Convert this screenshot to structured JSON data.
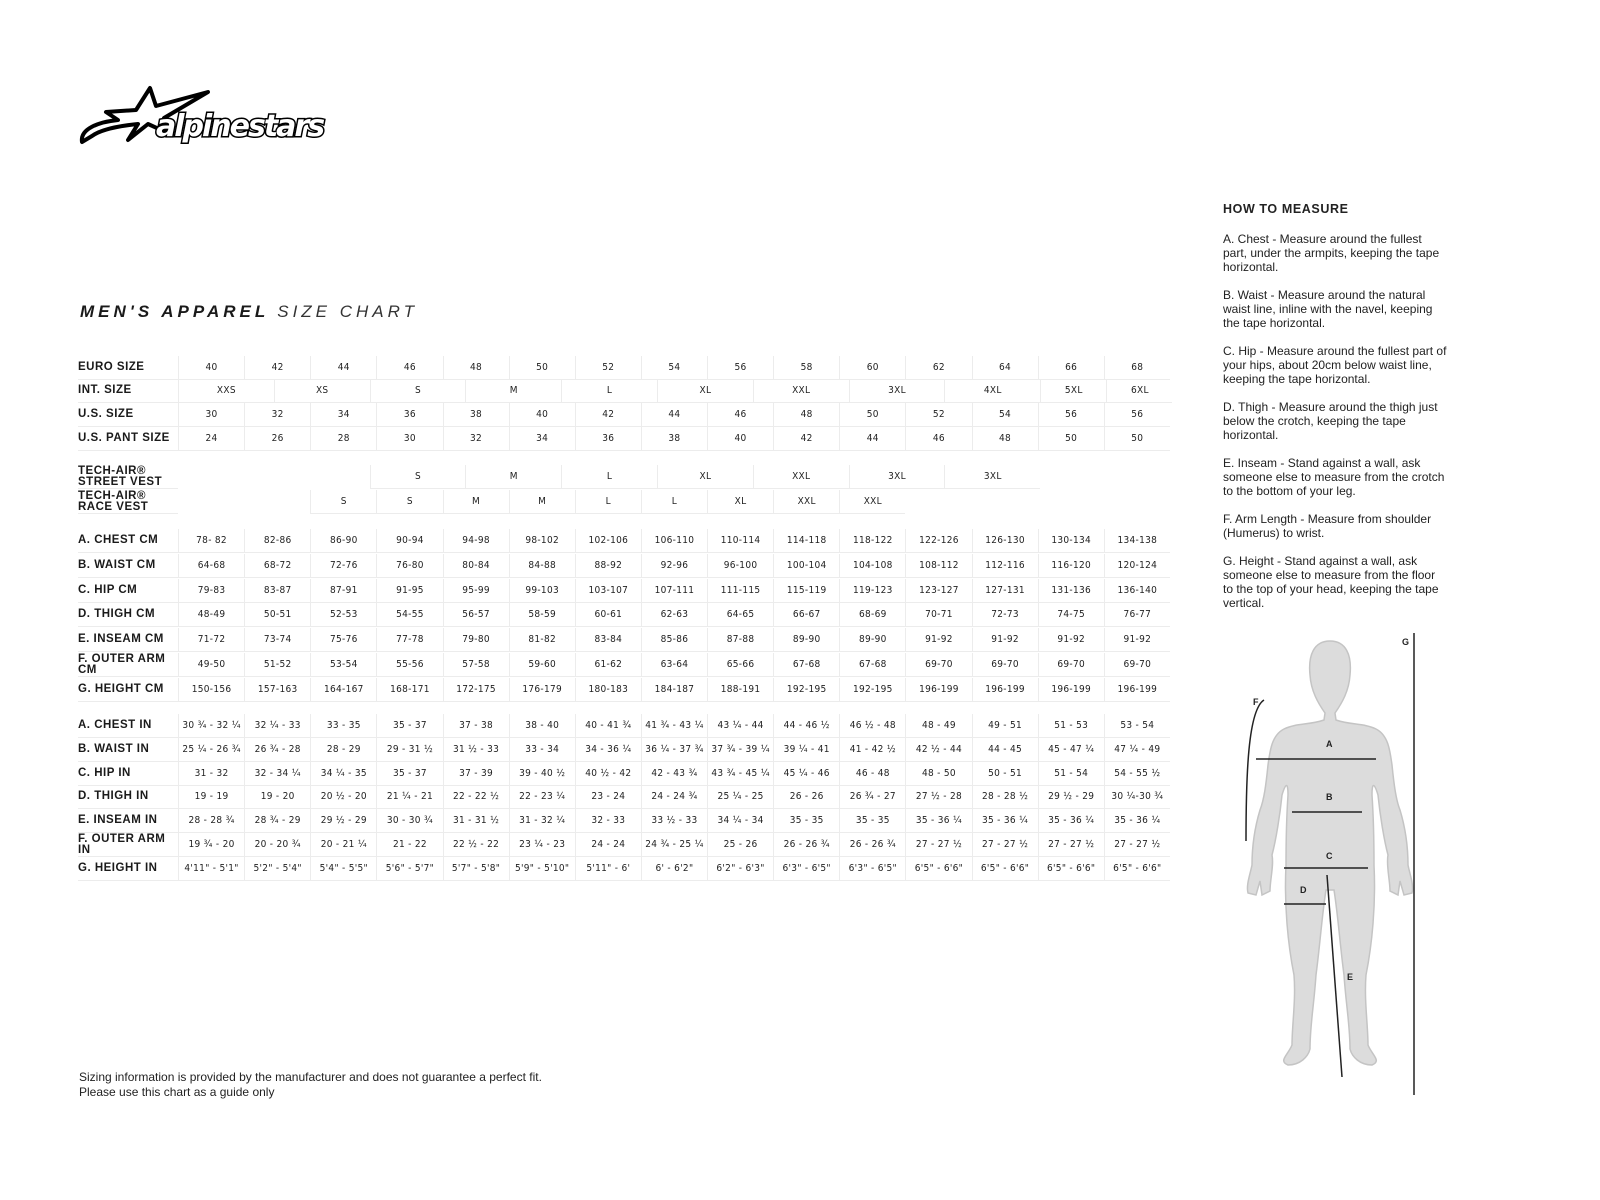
{
  "brand": {
    "logo_text": "alpinestars"
  },
  "title": {
    "bold": "MEN'S APPAREL",
    "light": "SIZE CHART"
  },
  "size_rows": [
    {
      "label": "EURO SIZE",
      "values": [
        "40",
        "42",
        "44",
        "46",
        "48",
        "50",
        "52",
        "54",
        "56",
        "58",
        "60",
        "62",
        "64",
        "66",
        "68"
      ]
    },
    {
      "label": "INT. SIZE",
      "values": [
        "XXS",
        "XS",
        "S",
        "M",
        "L",
        "XL",
        "XXL",
        "3XL",
        "4XL",
        "5XL",
        "6XL"
      ]
    },
    {
      "label": "U.S. SIZE",
      "values": [
        "30",
        "32",
        "34",
        "36",
        "38",
        "40",
        "42",
        "44",
        "46",
        "48",
        "50",
        "52",
        "54",
        "56",
        "56"
      ]
    },
    {
      "label": "U.S. PANT SIZE",
      "values": [
        "24",
        "26",
        "28",
        "30",
        "32",
        "34",
        "36",
        "38",
        "40",
        "42",
        "44",
        "46",
        "48",
        "50",
        "50"
      ]
    }
  ],
  "vest_rows": [
    {
      "label": "TECH-AIR® STREET VEST",
      "values": [
        "S",
        "M",
        "L",
        "XL",
        "XXL",
        "3XL",
        "3XL"
      ]
    },
    {
      "label": "TECH-AIR® RACE VEST",
      "values": [
        "S",
        "S",
        "M",
        "M",
        "L",
        "L",
        "XL",
        "XXL",
        "XXL"
      ]
    }
  ],
  "cm_rows": [
    {
      "label": "A. CHEST CM",
      "values": [
        "78- 82",
        "82-86",
        "86-90",
        "90-94",
        "94-98",
        "98-102",
        "102-106",
        "106-110",
        "110-114",
        "114-118",
        "118-122",
        "122-126",
        "126-130",
        "130-134",
        "134-138"
      ]
    },
    {
      "label": "B. WAIST CM",
      "values": [
        "64-68",
        "68-72",
        "72-76",
        "76-80",
        "80-84",
        "84-88",
        "88-92",
        "92-96",
        "96-100",
        "100-104",
        "104-108",
        "108-112",
        "112-116",
        "116-120",
        "120-124"
      ]
    },
    {
      "label": "C. HIP CM",
      "values": [
        "79-83",
        "83-87",
        "87-91",
        "91-95",
        "95-99",
        "99-103",
        "103-107",
        "107-111",
        "111-115",
        "115-119",
        "119-123",
        "123-127",
        "127-131",
        "131-136",
        "136-140"
      ]
    },
    {
      "label": "D. THIGH CM",
      "values": [
        "48-49",
        "50-51",
        "52-53",
        "54-55",
        "56-57",
        "58-59",
        "60-61",
        "62-63",
        "64-65",
        "66-67",
        "68-69",
        "70-71",
        "72-73",
        "74-75",
        "76-77"
      ]
    },
    {
      "label": "E. INSEAM CM",
      "values": [
        "71-72",
        "73-74",
        "75-76",
        "77-78",
        "79-80",
        "81-82",
        "83-84",
        "85-86",
        "87-88",
        "89-90",
        "89-90",
        "91-92",
        "91-92",
        "91-92",
        "91-92"
      ]
    },
    {
      "label": "F. OUTER ARM CM",
      "values": [
        "49-50",
        "51-52",
        "53-54",
        "55-56",
        "57-58",
        "59-60",
        "61-62",
        "63-64",
        "65-66",
        "67-68",
        "67-68",
        "69-70",
        "69-70",
        "69-70",
        "69-70"
      ]
    },
    {
      "label": "G. HEIGHT CM",
      "values": [
        "150-156",
        "157-163",
        "164-167",
        "168-171",
        "172-175",
        "176-179",
        "180-183",
        "184-187",
        "188-191",
        "192-195",
        "192-195",
        "196-199",
        "196-199",
        "196-199",
        "196-199"
      ]
    }
  ],
  "in_rows": [
    {
      "label": "A. CHEST IN",
      "values": [
        "30 ¾ - 32 ¼",
        "32 ¼ - 33",
        "33  - 35",
        "35  - 37",
        "37 - 38",
        "38  - 40",
        "40  - 41 ¾",
        "41 ¾ - 43 ¼",
        "43 ¼ - 44",
        "44  - 46 ½",
        "46 ½ - 48",
        "48 - 49",
        "49  - 51",
        "51 - 53",
        "53  - 54"
      ]
    },
    {
      "label": "B. WAIST IN",
      "values": [
        "25 ¼ - 26 ¾",
        "26 ¾ - 28",
        "28  - 29",
        "29  - 31 ½",
        "31 ½ - 33",
        "33  - 34",
        "34  - 36 ¼",
        "36 ¼ - 37 ¾",
        "37 ¾ - 39 ¼",
        "39 ¼ - 41",
        "41 - 42 ½",
        "42 ½ - 44",
        "44  - 45",
        "45  - 47 ¼",
        "47 ¼ - 49"
      ]
    },
    {
      "label": "C. HIP IN",
      "values": [
        "31  - 32",
        "32  - 34 ¼",
        "34 ¼ - 35",
        "35  - 37",
        "37  - 39",
        "39 - 40 ½",
        "40 ½ - 42",
        "42  - 43 ¾",
        "43 ¾ - 45 ¼",
        "45 ¼ - 46",
        "46  - 48",
        "48  - 50",
        "50 - 51",
        "51  - 54",
        "54  - 55 ½"
      ]
    },
    {
      "label": "D. THIGH IN",
      "values": [
        "19  - 19",
        "19  - 20",
        "20 ½ - 20",
        "21 ¼ - 21",
        "22 - 22 ½",
        "22  - 23 ¼",
        "23  - 24",
        "24  - 24 ¾",
        "25 ¼ - 25",
        "26 - 26",
        "26 ¾ - 27",
        "27 ½ - 28",
        "28  - 28 ½",
        "29 ½ - 29",
        "30 ¼-30 ¾"
      ]
    },
    {
      "label": "E. INSEAM IN",
      "values": [
        "28 - 28 ¾",
        "28 ¾ - 29",
        "29 ½ - 29",
        "30  - 30 ¾",
        "31  - 31 ½",
        "31  - 32 ¼",
        "32  - 33",
        "33 ½ - 33",
        "34 ¼ - 34",
        "35 - 35",
        "35 - 35",
        "35  - 36 ¼",
        "35  - 36 ¼",
        "35  - 36 ¼",
        "35  - 36 ¼"
      ]
    },
    {
      "label": "F. OUTER ARM IN",
      "values": [
        "19 ¾ - 20",
        "20  - 20 ¾",
        "20  - 21 ¼",
        "21  - 22",
        "22 ½ - 22",
        "23 ¼ - 23",
        "24 - 24",
        "24 ¾ - 25 ¼",
        "25  - 26",
        "26  - 26 ¾",
        "26  - 26 ¾",
        "27  - 27 ½",
        "27  - 27 ½",
        "27  - 27 ½",
        "27  - 27 ½"
      ]
    },
    {
      "label": "G. HEIGHT IN",
      "values": [
        "4'11\" - 5'1\"",
        "5'2\" - 5'4\"",
        "5'4\" - 5'5\"",
        "5'6\" - 5'7\"",
        "5'7\" - 5'8\"",
        "5'9\" - 5'10\"",
        "5'11\" - 6'",
        "6' - 6'2\"",
        "6'2\" - 6'3\"",
        "6'3\" - 6'5\"",
        "6'3\" - 6'5\"",
        "6'5\" - 6'6\"",
        "6'5\" - 6'6\"",
        "6'5\" - 6'6\"",
        "6'5\" - 6'6\""
      ]
    }
  ],
  "how_to_measure": {
    "heading": "HOW TO MEASURE",
    "items": [
      "A. Chest - Measure around the fullest part, under the armpits, keeping the tape horizontal.",
      "B. Waist - Measure around the natural waist line, inline with the navel, keeping the tape horizontal.",
      "C. Hip - Measure around the fullest part of your hips, about 20cm below waist line, keeping the tape horizontal.",
      "D. Thigh - Measure around the thigh just below the crotch, keeping the tape horizontal.",
      "E. Inseam - Stand against a wall, ask someone else to measure from the crotch to the bottom of your leg.",
      "F. Arm Length - Measure from shoulder (Humerus) to wrist.",
      "G. Height - Stand against a wall, ask someone else to measure from the floor to the top of your head, keeping the tape vertical."
    ]
  },
  "figure_labels": {
    "a": "A",
    "b": "B",
    "c": "C",
    "d": "D",
    "e": "E",
    "f": "F",
    "g": "G"
  },
  "footer": {
    "line1": "Sizing information is provided by the manufacturer and does not guarantee a perfect fit.",
    "line2": "Please use this chart as a guide only"
  }
}
